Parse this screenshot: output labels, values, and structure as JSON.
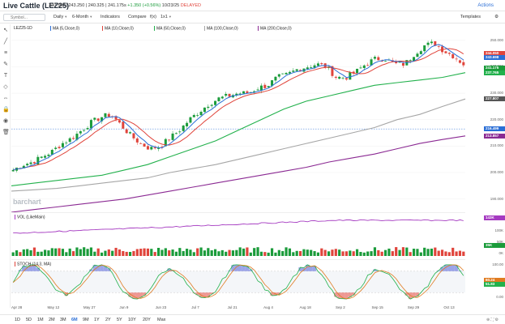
{
  "title": "Live Cattle (LEZ25)",
  "quote": {
    "ohlc": "240.550 | 243.250 | 240.325 | 241.175s",
    "change": "+1.350 (+0.56%)",
    "date": "10/23/25",
    "status": "DELAYED"
  },
  "actions_label": "Actions",
  "toolbar": {
    "search_placeholder": "Symbol...",
    "period": "Daily",
    "range": "6-Month",
    "indicators": "Indicators",
    "compare": "Compare",
    "fx": "f(x)",
    "layout": "1x1",
    "templates": "Templates"
  },
  "legend": {
    "symbol": "LEZ25-1D",
    "ma5": "MA (5,Close,0)",
    "ma10": "MA (10,Close,0)",
    "ma50": "MA (50,Close,0)",
    "ma100": "MA (100,Close,0)",
    "ma200": "MA (200,Close,0)"
  },
  "colors": {
    "ma5": "#2a6ed6",
    "ma10": "#e0443b",
    "ma50": "#22b14c",
    "ma100": "#a6a6a6",
    "ma200": "#8b2a93",
    "up": "#1a9b3a",
    "down": "#e0443b"
  },
  "price_axis": {
    "ticks": [
      "250.000",
      "240.000",
      "230.000",
      "220.000",
      "210.000",
      "200.000",
      "190.000"
    ]
  },
  "price_labels": [
    {
      "value": "244.050",
      "color": "#e0443b"
    },
    {
      "value": "243.698",
      "color": "#2a6ed6"
    },
    {
      "value": "241.175",
      "color": "#1a9b3a"
    },
    {
      "value": "237.765",
      "color": "#22b14c"
    },
    {
      "value": "227.807",
      "color": "#555555"
    },
    {
      "value": "216.499",
      "color": "#2a6ed6"
    },
    {
      "value": "213.857",
      "color": "#8b2a93"
    }
  ],
  "volume": {
    "title": "VOL (LikeMain)",
    "axis": [
      "100K",
      "50K",
      "0K"
    ],
    "labels": [
      "143K",
      "35K"
    ]
  },
  "stoch": {
    "title": "STOCH (14,3, MA)",
    "axis": [
      "100.00",
      "50.00",
      "0.00"
    ],
    "labels": [
      "60.24",
      "51.83"
    ]
  },
  "watermark": "barchart",
  "x_axis": [
    "Apr 28",
    "May 12",
    "May 27",
    "Jun 9",
    "Jun 23",
    "Jul 7",
    "Jul 21",
    "Aug 4",
    "Aug 18",
    "Sep 2",
    "Sep 15",
    "Sep 29",
    "Oct 13"
  ],
  "periods": [
    {
      "label": "1D",
      "active": false
    },
    {
      "label": "5D",
      "active": false
    },
    {
      "label": "1M",
      "active": false
    },
    {
      "label": "2M",
      "active": false
    },
    {
      "label": "3M",
      "active": false
    },
    {
      "label": "6M",
      "active": true
    },
    {
      "label": "9M",
      "active": false
    },
    {
      "label": "1Y",
      "active": false
    },
    {
      "label": "2Y",
      "active": false
    },
    {
      "label": "5Y",
      "active": false
    },
    {
      "label": "10Y",
      "active": false
    },
    {
      "label": "20Y",
      "active": false
    },
    {
      "label": "Max",
      "active": false
    }
  ],
  "chart_data": {
    "type": "candlestick",
    "x_range": [
      "Apr 28",
      "Oct 23"
    ],
    "ylim": [
      185,
      253
    ],
    "close_path": [
      201,
      203,
      204,
      206,
      208,
      211,
      213,
      216,
      219,
      221,
      222,
      218,
      214,
      211,
      209,
      210,
      213,
      216,
      220,
      223,
      226,
      228,
      229,
      230,
      230,
      232,
      233,
      236,
      237,
      239,
      240,
      241,
      240,
      236,
      236,
      238,
      241,
      243,
      243,
      241,
      241,
      245,
      248,
      249,
      246,
      244,
      241
    ],
    "ma5_last": 243.698,
    "ma10_last": 244.05,
    "ma50": [
      195,
      196,
      197,
      198,
      199,
      201,
      203,
      206,
      209,
      212,
      216,
      220,
      224,
      227,
      229,
      231,
      233,
      234,
      235,
      236,
      237.765
    ],
    "ma100": [
      193,
      193.5,
      194,
      195,
      196,
      197,
      198,
      200,
      201.5,
      203,
      205,
      207,
      209,
      211,
      213,
      215,
      217,
      220,
      222,
      225,
      227.807
    ],
    "ma200": [
      185,
      186,
      187,
      188,
      189,
      190,
      191.5,
      193,
      194.5,
      196,
      197.5,
      199,
      200.5,
      202,
      204,
      205.5,
      207,
      209,
      211,
      212.5,
      213.857
    ]
  }
}
